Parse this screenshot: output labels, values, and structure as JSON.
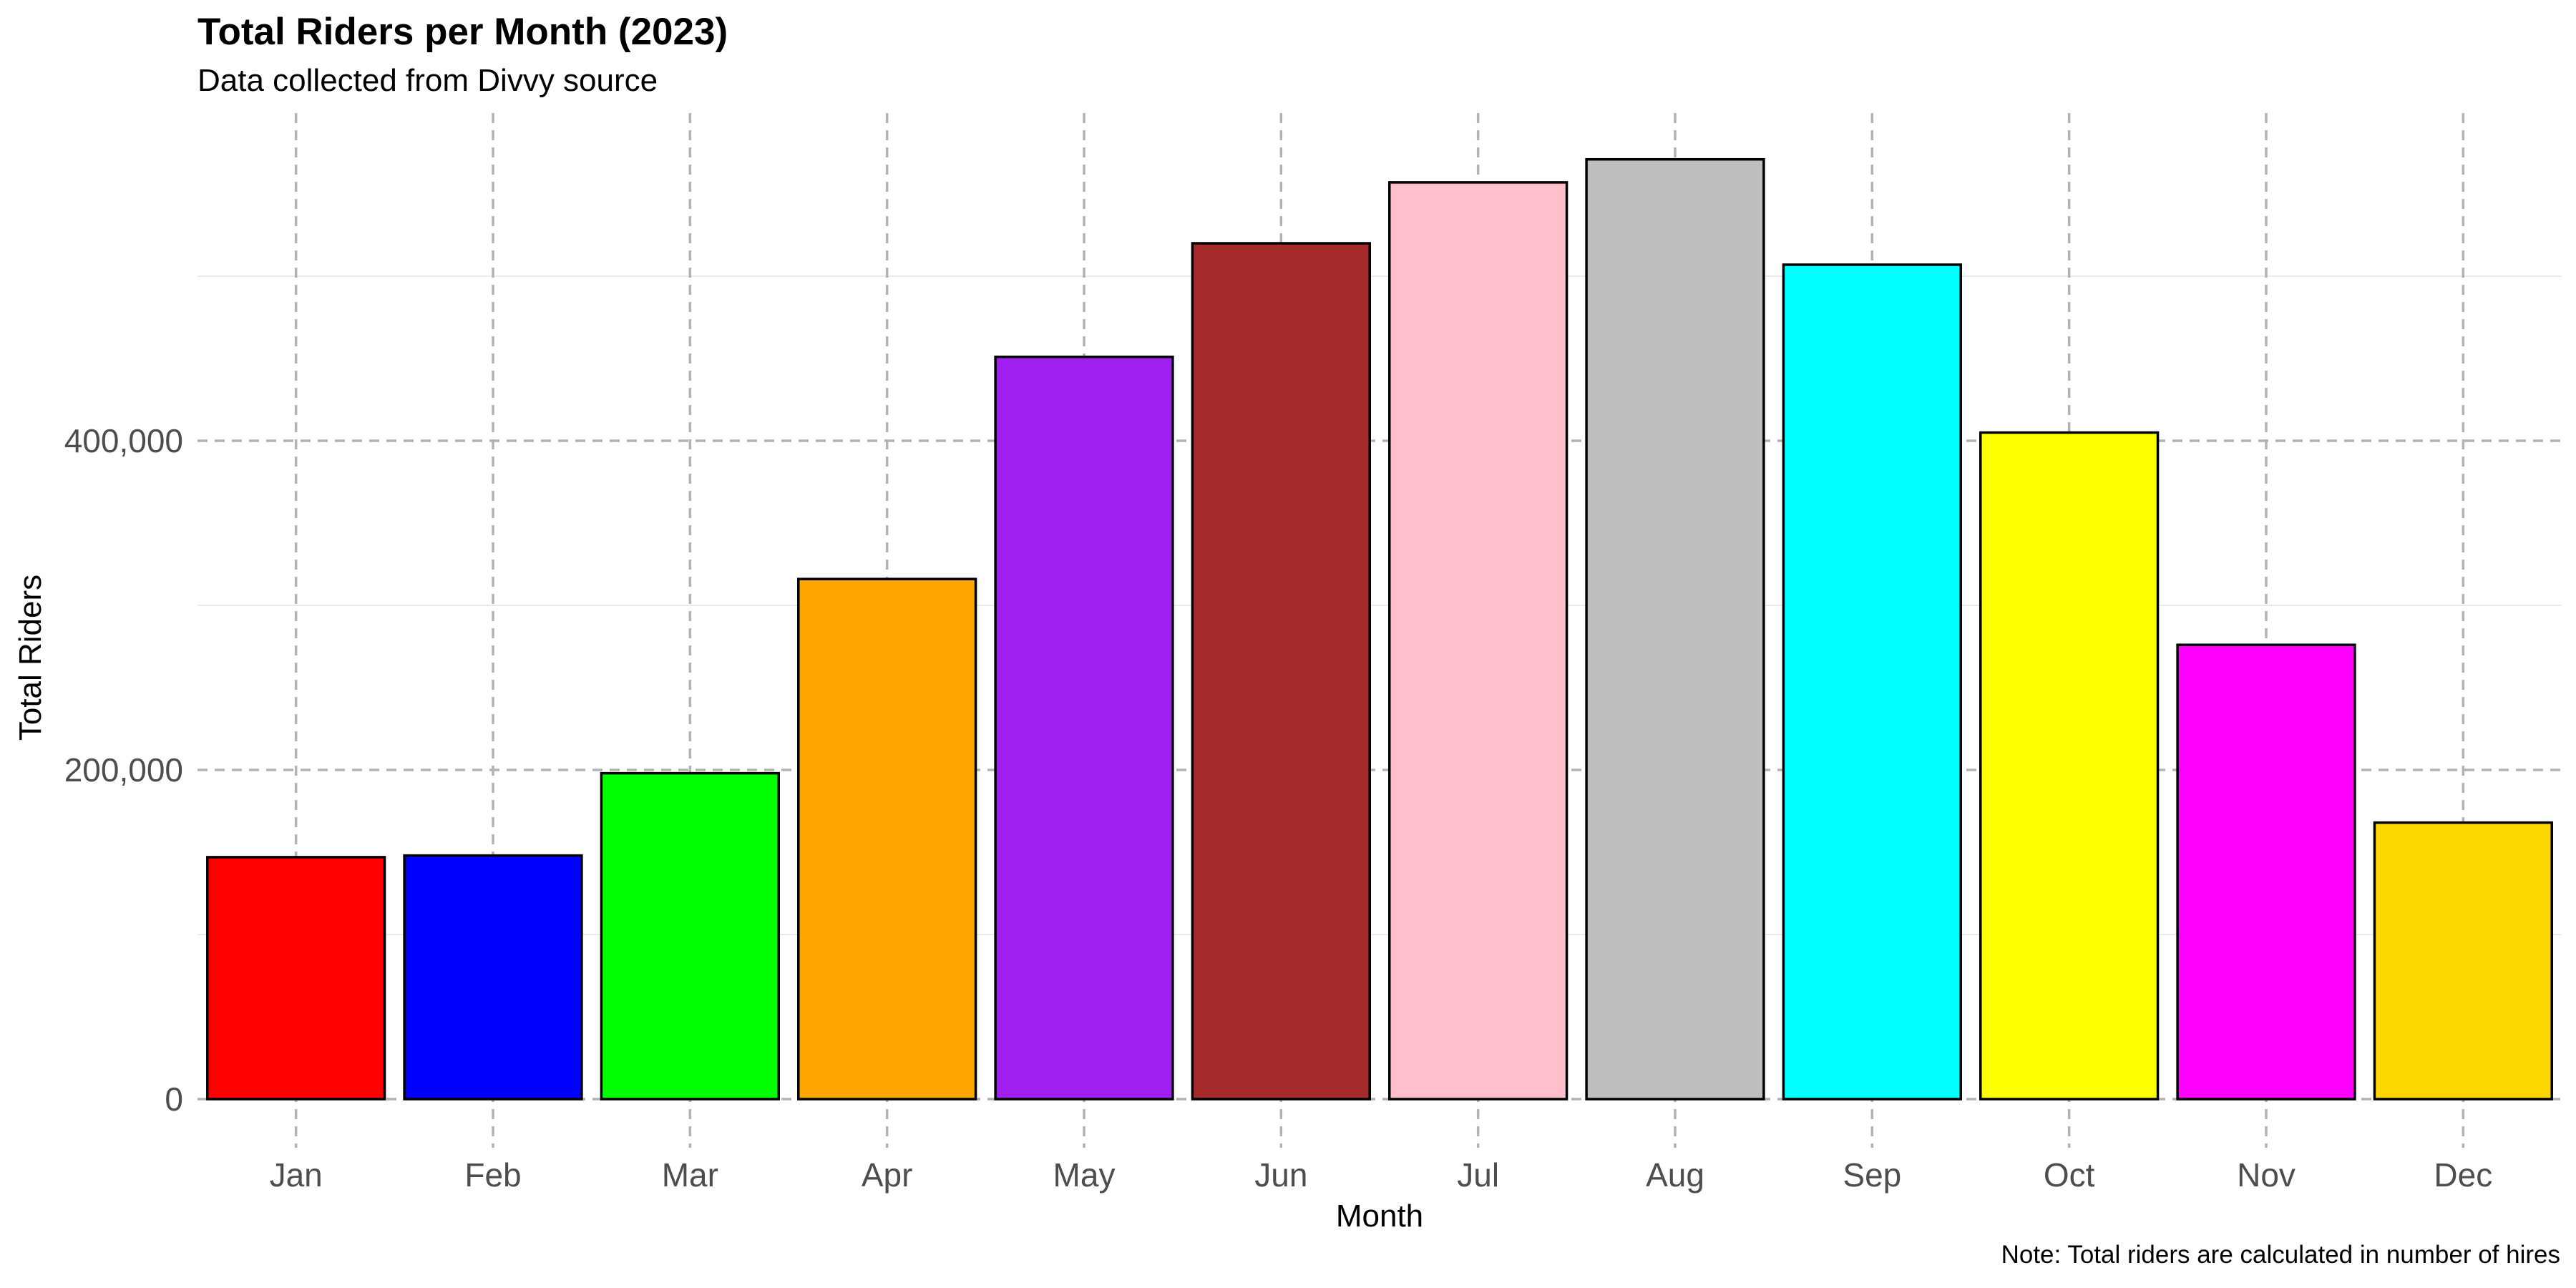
{
  "chart_data": {
    "type": "bar",
    "title": "Total Riders per Month (2023)",
    "subtitle": "Data collected from Divvy source",
    "xlabel": "Month",
    "ylabel": "Total Riders",
    "caption": "Note: Total riders are calculated in number of hires",
    "categories": [
      "Jan",
      "Feb",
      "Mar",
      "Apr",
      "May",
      "Jun",
      "Jul",
      "Aug",
      "Sep",
      "Oct",
      "Nov",
      "Dec"
    ],
    "values": [
      147000,
      148000,
      198000,
      316000,
      451000,
      520000,
      557000,
      571000,
      507000,
      405000,
      276000,
      168000
    ],
    "colors": [
      "#FF0000",
      "#0000FF",
      "#00FF00",
      "#FFA500",
      "#A020F0",
      "#A52A2A",
      "#FFC0CB",
      "#BEBEBE",
      "#00FFFF",
      "#FFFF00",
      "#FF00FF",
      "#FFD700"
    ],
    "bar_outline": "#000000",
    "ylim": [
      0,
      570000
    ],
    "y_ticks": [
      0,
      200000,
      400000
    ],
    "y_tick_labels": [
      "0",
      "200,000",
      "400,000"
    ],
    "y_minor_grid": [
      100000,
      300000,
      500000
    ],
    "grid": true,
    "legend": "none"
  }
}
